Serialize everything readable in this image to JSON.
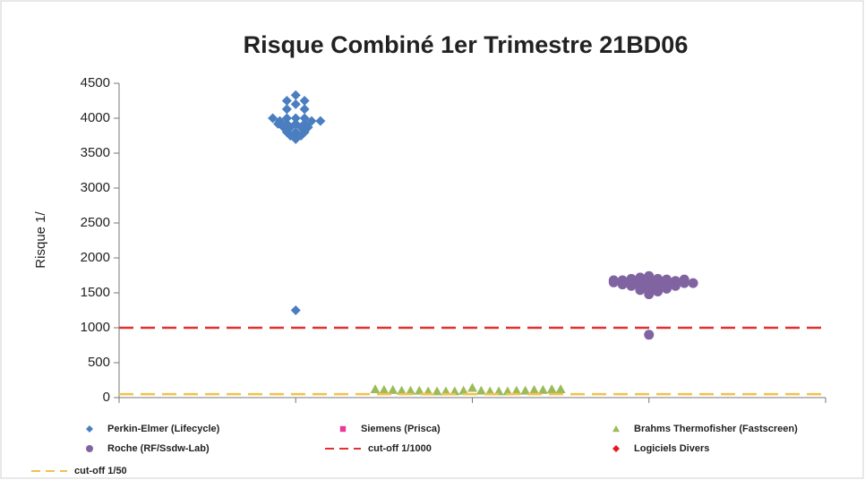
{
  "chart_data": {
    "type": "scatter",
    "title": "Risque Combiné 1er Trimestre 21BD06",
    "y_label": "Risque 1/",
    "xlim": [
      0,
      4
    ],
    "xticks": [
      0,
      1,
      2,
      3,
      4
    ],
    "ylim": [
      0,
      4500
    ],
    "yticks": [
      0,
      500,
      1000,
      1500,
      2000,
      2500,
      3000,
      3500,
      4000,
      4500
    ],
    "grid": false,
    "legend": "bottom",
    "series": [
      {
        "name": "Perkin-Elmer (Lifecycle)",
        "color": "#4a7ec0",
        "marker": "diamond",
        "x": [
          1.0,
          0.95,
          1.05,
          1.0,
          0.95,
          1.05,
          0.87,
          0.91,
          0.95,
          1.0,
          1.05,
          1.09,
          1.14,
          0.9,
          0.95,
          1.0,
          1.05,
          0.93,
          0.97,
          1.03,
          1.07,
          0.95,
          1.0,
          1.05,
          0.97,
          1.03,
          1.0,
          1.0
        ],
        "y": [
          4330,
          4250,
          4250,
          4200,
          4130,
          4130,
          4000,
          3960,
          4000,
          4000,
          4000,
          3960,
          3960,
          3920,
          3920,
          3920,
          3920,
          3870,
          3870,
          3870,
          3870,
          3800,
          3800,
          3800,
          3750,
          3750,
          3700,
          1250
        ]
      },
      {
        "name": "Siemens (Prisca)",
        "color": "#e8389a",
        "marker": "square",
        "x": [],
        "y": []
      },
      {
        "name": "Brahms Thermofisher (Fastscreen)",
        "color": "#9bbb59",
        "marker": "triangle",
        "x": [
          1.45,
          1.5,
          1.55,
          1.6,
          1.65,
          1.7,
          1.75,
          1.8,
          1.85,
          1.9,
          1.95,
          2.0,
          2.05,
          2.1,
          2.15,
          2.2,
          2.25,
          2.3,
          2.35,
          2.4,
          2.45,
          2.5
        ],
        "y": [
          120,
          110,
          110,
          100,
          100,
          100,
          90,
          90,
          90,
          90,
          100,
          140,
          100,
          90,
          90,
          90,
          100,
          100,
          110,
          110,
          120,
          120
        ]
      },
      {
        "name": "Roche (RF/Ssdw-Lab)",
        "color": "#8064a2",
        "marker": "circle",
        "x": [
          2.8,
          2.8,
          2.85,
          2.85,
          2.9,
          2.9,
          2.9,
          2.95,
          2.95,
          2.95,
          2.95,
          3.0,
          3.0,
          3.0,
          3.0,
          3.0,
          3.05,
          3.05,
          3.05,
          3.05,
          3.1,
          3.1,
          3.1,
          3.15,
          3.15,
          3.2,
          3.2,
          3.25,
          3.0
        ],
        "y": [
          1650,
          1680,
          1620,
          1680,
          1600,
          1650,
          1700,
          1540,
          1600,
          1660,
          1720,
          1480,
          1540,
          1600,
          1660,
          1740,
          1520,
          1580,
          1640,
          1700,
          1560,
          1620,
          1690,
          1600,
          1670,
          1640,
          1690,
          1640,
          900
        ]
      },
      {
        "name": "cut-off 1/1000",
        "color": "#e03030",
        "marker": "dash",
        "value": 1000
      },
      {
        "name": "Logiciels Divers",
        "color": "#e31a1c",
        "marker": "diamond",
        "x": [],
        "y": []
      },
      {
        "name": "cut-off 1/50",
        "color": "#f2c14e",
        "marker": "dash",
        "value": 50
      }
    ]
  }
}
